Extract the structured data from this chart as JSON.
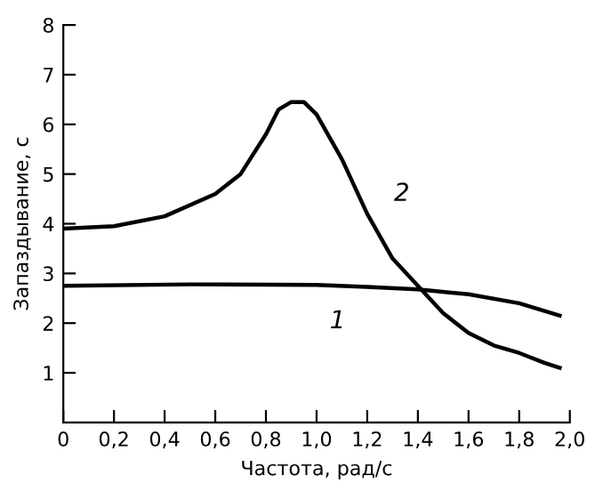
{
  "chart_data": {
    "type": "line",
    "xlabel": "Частота, рад/с",
    "ylabel": "Запаздывание, с",
    "xlim": [
      0,
      2.0
    ],
    "ylim": [
      0,
      8
    ],
    "xticks": [
      0,
      {
        "value": 0.2,
        "label": "0,2"
      },
      {
        "value": 0.4,
        "label": "0,4"
      },
      {
        "value": 0.6,
        "label": "0,6"
      },
      {
        "value": 0.8,
        "label": "0,8"
      },
      {
        "value": 1.0,
        "label": "1,0"
      },
      {
        "value": 1.2,
        "label": "1,2"
      },
      {
        "value": 1.4,
        "label": "1,4"
      },
      {
        "value": 1.6,
        "label": "1,6"
      },
      {
        "value": 1.8,
        "label": "1,8"
      },
      {
        "value": 2.0,
        "label": "2,0"
      }
    ],
    "yticks": [
      1,
      2,
      3,
      4,
      5,
      6,
      7,
      8
    ],
    "grid": false,
    "legend": false,
    "series": [
      {
        "name": "1",
        "color": "#000000",
        "x": [
          0,
          0.5,
          1.0,
          1.2,
          1.4,
          1.6,
          1.8,
          1.96
        ],
        "values": [
          2.75,
          2.78,
          2.77,
          2.73,
          2.68,
          2.58,
          2.4,
          2.15
        ]
      },
      {
        "name": "2",
        "color": "#000000",
        "x": [
          0,
          0.2,
          0.4,
          0.6,
          0.7,
          0.8,
          0.85,
          0.9,
          0.95,
          1.0,
          1.1,
          1.2,
          1.3,
          1.4,
          1.5,
          1.6,
          1.7,
          1.8,
          1.9,
          1.96
        ],
        "values": [
          3.9,
          3.95,
          4.15,
          4.6,
          5.0,
          5.8,
          6.3,
          6.45,
          6.45,
          6.2,
          5.3,
          4.2,
          3.3,
          2.75,
          2.2,
          1.8,
          1.55,
          1.4,
          1.2,
          1.1
        ]
      }
    ]
  }
}
